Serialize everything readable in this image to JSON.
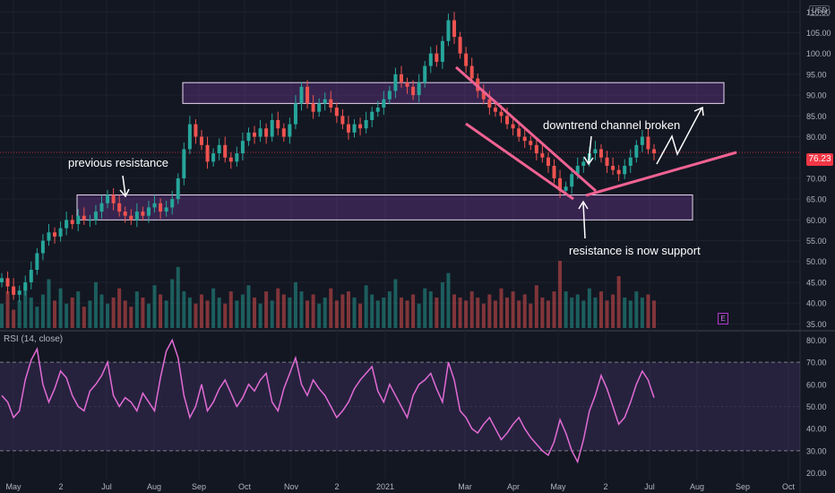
{
  "chart_data": {
    "type": "candlestick",
    "currency": "USD",
    "last_price": "76.23",
    "price_axis": {
      "ticks": [
        "110.00",
        "105.00",
        "100.00",
        "95.00",
        "90.00",
        "85.00",
        "80.00",
        "75.00",
        "70.00",
        "65.00",
        "60.00",
        "55.00",
        "50.00",
        "45.00",
        "40.00",
        "35.00"
      ]
    },
    "rsi_axis": {
      "ticks": [
        "80.00",
        "70.00",
        "60.00",
        "50.00",
        "40.00",
        "30.00",
        "20.00"
      ]
    },
    "time_axis": [
      "May",
      "2",
      "Jul",
      "Aug",
      "Sep",
      "Oct",
      "Nov",
      "2",
      "2021",
      "Mar",
      "Apr",
      "May",
      "2",
      "Jul",
      "Aug",
      "Sep",
      "Oct"
    ],
    "price_series": [
      46,
      44,
      42,
      43,
      45,
      48,
      52,
      55,
      57,
      56,
      58,
      60,
      59,
      61,
      60,
      60,
      62,
      64,
      66,
      64,
      62,
      61,
      60,
      62,
      61,
      63,
      64,
      62,
      63,
      65,
      70,
      77,
      83,
      80,
      78,
      74,
      76,
      78,
      75,
      74,
      76,
      79,
      81,
      80,
      82,
      80,
      84,
      82,
      80,
      83,
      88,
      92,
      88,
      86,
      88,
      89,
      87,
      85,
      83,
      81,
      83,
      82,
      84,
      86,
      87,
      89,
      91,
      95,
      93,
      92,
      90,
      93,
      97,
      100,
      98,
      103,
      108,
      104,
      100,
      97,
      94,
      91,
      89,
      87,
      86,
      85,
      83,
      82,
      80,
      79,
      78,
      76,
      75,
      73,
      70,
      67,
      68,
      71,
      73,
      74,
      76,
      77,
      75,
      73,
      72,
      71,
      73,
      75,
      78,
      80,
      77,
      76
    ],
    "volume_series": [
      8,
      12,
      6,
      9,
      14,
      10,
      7,
      11,
      16,
      9,
      13,
      8,
      10,
      12,
      7,
      9,
      15,
      11,
      8,
      10,
      13,
      9,
      7,
      12,
      10,
      8,
      14,
      11,
      9,
      16,
      20,
      12,
      10,
      8,
      11,
      9,
      13,
      10,
      8,
      12,
      9,
      11,
      14,
      10,
      8,
      12,
      9,
      13,
      11,
      10,
      15,
      12,
      9,
      11,
      8,
      10,
      13,
      9,
      11,
      12,
      10,
      8,
      14,
      11,
      9,
      10,
      12,
      16,
      10,
      9,
      11,
      8,
      13,
      12,
      10,
      15,
      18,
      11,
      10,
      9,
      12,
      10,
      8,
      11,
      9,
      13,
      10,
      12,
      9,
      11,
      8,
      14,
      10,
      9,
      12,
      22,
      12,
      10,
      11,
      9,
      13,
      10,
      12,
      9,
      11,
      17,
      10,
      9,
      12,
      10,
      11,
      9
    ],
    "rsi_series": [
      55,
      52,
      45,
      48,
      62,
      71,
      76,
      60,
      52,
      58,
      66,
      63,
      55,
      50,
      48,
      57,
      60,
      64,
      70,
      55,
      50,
      54,
      52,
      48,
      56,
      52,
      48,
      63,
      75,
      80,
      72,
      55,
      45,
      50,
      60,
      48,
      52,
      58,
      62,
      56,
      50,
      54,
      60,
      57,
      62,
      65,
      52,
      48,
      58,
      65,
      72,
      60,
      55,
      62,
      58,
      55,
      50,
      45,
      48,
      52,
      58,
      62,
      65,
      68,
      57,
      52,
      60,
      55,
      50,
      45,
      55,
      60,
      62,
      65,
      58,
      52,
      70,
      62,
      48,
      45,
      40,
      38,
      42,
      45,
      40,
      35,
      38,
      42,
      45,
      40,
      36,
      33,
      30,
      28,
      34,
      44,
      38,
      30,
      25,
      35,
      48,
      55,
      64,
      58,
      50,
      42,
      45,
      52,
      60,
      66,
      62,
      54
    ],
    "rsi_label": "RSI (14, close)",
    "rsi_bands": [
      30,
      70
    ],
    "zones": [
      {
        "name": "upper-resistance",
        "from": 88,
        "to": 93
      },
      {
        "name": "lower-support",
        "from": 60,
        "to": 66
      }
    ],
    "annotations": {
      "previous_resistance": "previous resistance",
      "channel_broken": "downtrend channel broken",
      "resistance_support": "resistance is now support"
    },
    "earnings_marker": "E"
  }
}
